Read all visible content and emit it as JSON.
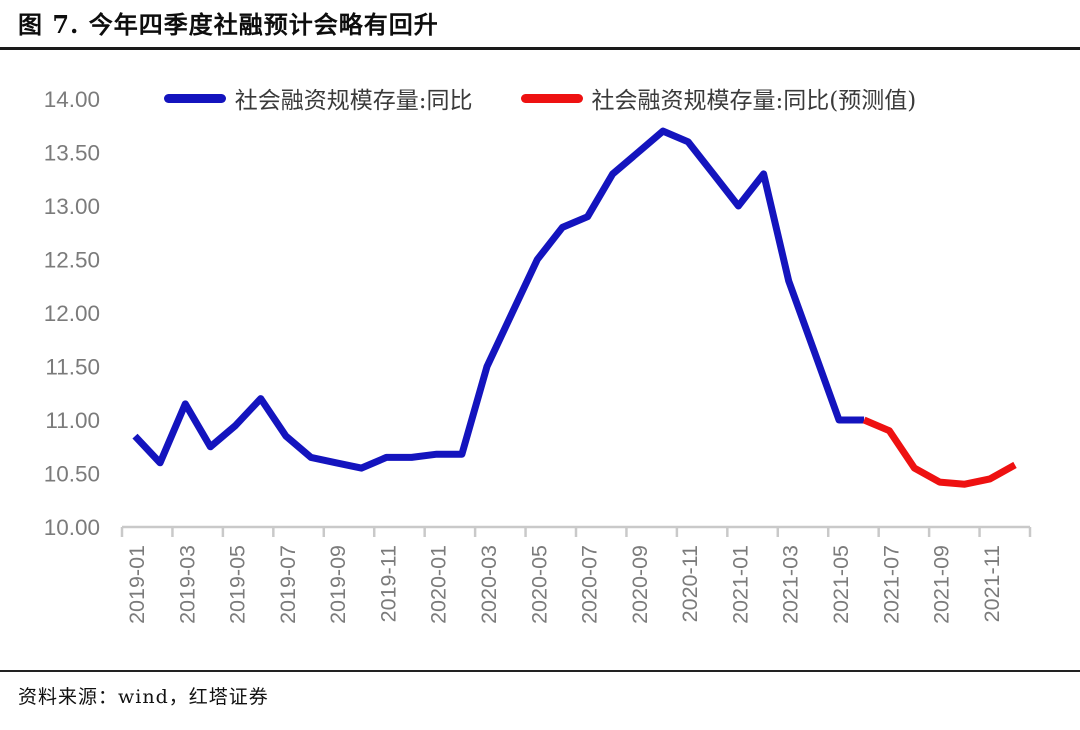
{
  "header": {
    "title": "图 7. 今年四季度社融预计会略有回升"
  },
  "footer": {
    "source": "资料来源：wind，红塔证券"
  },
  "chart_data": {
    "type": "line",
    "title": "图 7. 今年四季度社融预计会略有回升",
    "x": [
      "2019-01",
      "2019-02",
      "2019-03",
      "2019-04",
      "2019-05",
      "2019-06",
      "2019-07",
      "2019-08",
      "2019-09",
      "2019-10",
      "2019-11",
      "2019-12",
      "2020-01",
      "2020-02",
      "2020-03",
      "2020-04",
      "2020-05",
      "2020-06",
      "2020-07",
      "2020-08",
      "2020-09",
      "2020-10",
      "2020-11",
      "2020-12",
      "2021-01",
      "2021-02",
      "2021-03",
      "2021-04",
      "2021-05",
      "2021-06",
      "2021-07",
      "2021-08",
      "2021-09",
      "2021-10",
      "2021-11",
      "2021-12"
    ],
    "series": [
      {
        "name": "社会融资规模存量:同比",
        "color": "#1414BE",
        "values": [
          10.85,
          10.6,
          11.15,
          10.75,
          10.95,
          11.2,
          10.85,
          10.65,
          10.6,
          10.55,
          10.65,
          10.65,
          10.68,
          10.68,
          11.5,
          12.0,
          12.5,
          12.8,
          12.9,
          13.3,
          13.5,
          13.7,
          13.6,
          13.3,
          13.0,
          13.3,
          12.3,
          11.65,
          11.0,
          11.0,
          null,
          null,
          null,
          null,
          null,
          null
        ]
      },
      {
        "name": "社会融资规模存量:同比(预测值)",
        "color": "#EE1111",
        "values": [
          null,
          null,
          null,
          null,
          null,
          null,
          null,
          null,
          null,
          null,
          null,
          null,
          null,
          null,
          null,
          null,
          null,
          null,
          null,
          null,
          null,
          null,
          null,
          null,
          null,
          null,
          null,
          null,
          null,
          11.0,
          10.9,
          10.55,
          10.42,
          10.4,
          10.45,
          10.58
        ]
      }
    ],
    "ylim": [
      10.0,
      14.0
    ],
    "ytick_labels": [
      "14.00",
      "13.50",
      "13.00",
      "12.50",
      "12.00",
      "11.50",
      "11.00",
      "10.50",
      "10.00"
    ],
    "xtick_labels": [
      "2019-01",
      "2019-03",
      "2019-05",
      "2019-07",
      "2019-09",
      "2019-11",
      "2020-01",
      "2020-03",
      "2020-05",
      "2020-07",
      "2020-09",
      "2020-11",
      "2021-01",
      "2021-03",
      "2021-05",
      "2021-07",
      "2021-09",
      "2021-11"
    ],
    "xtick_every": 2,
    "legend_position": "top",
    "grid": false,
    "axis_color": "#C9C9C9",
    "tick_label_color": "#7B7B7B",
    "line_width": 7
  }
}
